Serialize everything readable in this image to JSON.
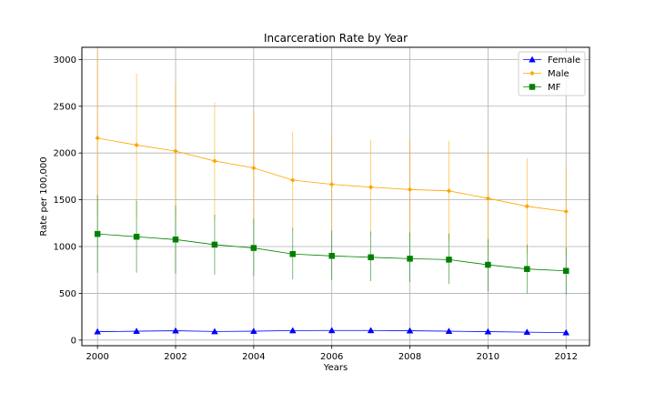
{
  "chart_data": {
    "type": "line",
    "title": "Incarceration Rate by Year",
    "xlabel": "Years",
    "ylabel": "Rate per 100,000",
    "xlim": [
      1999.6,
      2012.6
    ],
    "ylim": [
      -60,
      3130
    ],
    "x_ticks": [
      2000,
      2002,
      2004,
      2006,
      2008,
      2010,
      2012
    ],
    "y_ticks": [
      0,
      500,
      1000,
      1500,
      2000,
      2500,
      3000
    ],
    "grid": true,
    "legend_position": "top-right",
    "x": [
      2000,
      2001,
      2002,
      2003,
      2004,
      2005,
      2006,
      2007,
      2008,
      2009,
      2010,
      2011,
      2012
    ],
    "series": [
      {
        "name": "Female",
        "color": "#0000ff",
        "marker": "triangle",
        "values": [
          90,
          95,
          100,
          92,
          95,
          102,
          103,
          103,
          100,
          95,
          90,
          85,
          80
        ],
        "err_low": [
          80,
          85,
          90,
          82,
          85,
          92,
          93,
          93,
          90,
          85,
          80,
          75,
          70
        ],
        "err_high": [
          100,
          105,
          110,
          102,
          105,
          112,
          113,
          113,
          110,
          105,
          100,
          95,
          90
        ]
      },
      {
        "name": "Male",
        "color": "#ffa500",
        "marker": "diamond",
        "values": [
          2160,
          2085,
          2020,
          1915,
          1840,
          1710,
          1665,
          1635,
          1610,
          1595,
          1515,
          1430,
          1375
        ],
        "err_low": [
          1320,
          1310,
          1300,
          1290,
          1240,
          1180,
          1160,
          1120,
          1100,
          1060,
          1000,
          920,
          900
        ],
        "err_high": [
          3100,
          2850,
          2750,
          2540,
          2440,
          2230,
          2170,
          2140,
          2140,
          2130,
          2040,
          1945,
          1850
        ]
      },
      {
        "name": "MF",
        "color": "#008000",
        "marker": "square",
        "values": [
          1135,
          1105,
          1075,
          1020,
          985,
          920,
          900,
          885,
          870,
          860,
          805,
          760,
          740
        ],
        "err_low": [
          720,
          720,
          710,
          700,
          680,
          650,
          640,
          630,
          620,
          600,
          520,
          500,
          490
        ],
        "err_high": [
          1550,
          1490,
          1440,
          1340,
          1300,
          1200,
          1170,
          1160,
          1150,
          1140,
          1080,
          1020,
          990
        ]
      }
    ]
  }
}
